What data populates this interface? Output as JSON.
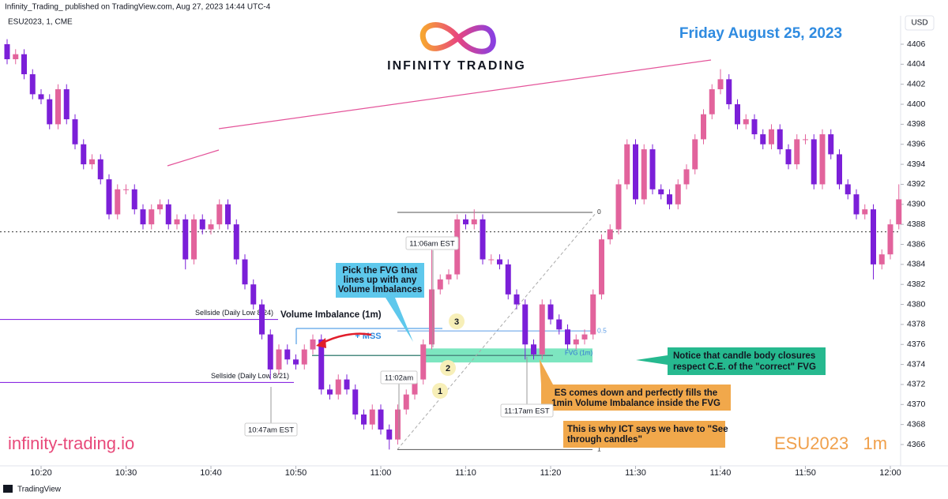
{
  "chart_data": {
    "type": "candlestick",
    "header": "Infinity_Trading_ published on TradingView.com, Aug 27, 2023 14:44 UTC-4",
    "symbol": "ESU2023, 1, CME",
    "logo": "INFINITY TRADING",
    "title": "Friday August 25, 2023",
    "currency": "USD",
    "footer": "TradingView",
    "watermark_left": "infinity-trading.io",
    "watermark_right": "ESU2023   1m",
    "up_color": "#e2639c",
    "down_color": "#7b1fd8",
    "categories": [
      null,
      null,
      null,
      null,
      "10:20",
      null,
      null,
      null,
      null,
      null,
      null,
      null,
      null,
      null,
      "10:30",
      null,
      null,
      null,
      null,
      null,
      null,
      null,
      null,
      null,
      "10:40",
      null,
      null,
      null,
      null,
      null,
      null,
      null,
      null,
      null,
      "10:50",
      null,
      null,
      null,
      null,
      null,
      null,
      null,
      null,
      null,
      "11:00",
      null,
      null,
      null,
      null,
      null,
      null,
      null,
      null,
      null,
      "11:10",
      null,
      null,
      null,
      null,
      null,
      null,
      null,
      null,
      null,
      "11:20",
      null,
      null,
      null,
      null,
      null,
      null,
      null,
      null,
      null,
      "11:30",
      null,
      null,
      null,
      null,
      null,
      null,
      null,
      null,
      null,
      "11:40",
      null,
      null,
      null,
      null,
      null,
      null,
      null,
      null,
      null,
      "11:50",
      null,
      null,
      null,
      null,
      null,
      null,
      null,
      null,
      null,
      "12:00",
      null
    ],
    "open": [
      4406,
      4404.5,
      4405,
      4403,
      4401,
      4400.5,
      4398,
      4401.5,
      4398.5,
      4396,
      4394,
      4394.5,
      4392.5,
      4389,
      4391.5,
      4391.5,
      4389.5,
      4388,
      4389.5,
      4390,
      4388,
      4388.5,
      4384.5,
      4388.5,
      4387.5,
      4388,
      4390,
      4388,
      4384.5,
      4382,
      4380,
      4377,
      4373.5,
      4375.5,
      4374.5,
      4374,
      4375.5,
      4376.5,
      4371.5,
      4371,
      4372.5,
      4371.5,
      4369,
      4368,
      4369.5,
      4367.5,
      4366.5,
      4369.5,
      4371,
      4372.5,
      4376,
      4381.5,
      4382.5,
      4383,
      4388.5,
      4388,
      4388.5,
      4384.5,
      4384.5,
      4384,
      4381,
      4380,
      4376,
      4375,
      4380,
      4378.5,
      4377.5,
      4376,
      4376.5,
      4377,
      4381,
      4386.5,
      4387.5,
      4392,
      4396,
      4390.5,
      4395.5,
      4391.5,
      4391,
      4390,
      4392,
      4393.5,
      4396.5,
      4399,
      4401.5,
      4402.5,
      4400,
      4398,
      4398.5,
      4397,
      4396,
      4397.5,
      4395.5,
      4394,
      4396.5,
      4396.5,
      4392,
      4397,
      4395,
      4392,
      4391,
      4389,
      4389.5,
      4384,
      4385,
      4388
    ],
    "high": [
      4406.5,
      4405.5,
      4405.5,
      4403.5,
      4401.5,
      4401,
      4402,
      4402,
      4399,
      4396.5,
      4395,
      4395,
      4393,
      4392,
      4392,
      4392,
      4390,
      4390,
      4390.5,
      4390.5,
      4389,
      4389,
      4389,
      4389,
      4388.5,
      4390.5,
      4390.5,
      4388.5,
      4385,
      4382.5,
      4380.5,
      4377.5,
      4376,
      4376,
      4375,
      4376,
      4377,
      4377,
      4372,
      4373,
      4373,
      4372,
      4369.5,
      4370,
      4370,
      4368,
      4370,
      4371.5,
      4373,
      4376.5,
      4385.5,
      4383,
      4383.5,
      4389,
      4389,
      4389.5,
      4389,
      4385,
      4385,
      4384.5,
      4381.5,
      4380.5,
      4376.5,
      4380.5,
      4380.5,
      4379,
      4378,
      4377,
      4377.5,
      4381.5,
      4387,
      4388,
      4392.5,
      4396.5,
      4396.5,
      4396,
      4396,
      4392,
      4391.5,
      4392.5,
      4394,
      4397,
      4399.5,
      4402,
      4403.5,
      4403,
      4400.5,
      4399,
      4399,
      4397.5,
      4398,
      4398,
      4396,
      4397,
      4397,
      4397,
      4397.5,
      4397.5,
      4395.5,
      4392.5,
      4391.5,
      4390,
      4390,
      4385.5,
      4388.5,
      4392
    ],
    "low": [
      4404,
      4404,
      4402.5,
      4400.5,
      4400,
      4397.5,
      4397.5,
      4398,
      4395.5,
      4393.5,
      4393.5,
      4392,
      4388.5,
      4388.5,
      4391,
      4389,
      4387.5,
      4387.5,
      4389,
      4387.5,
      4387.5,
      4383.5,
      4384,
      4387,
      4387,
      4387.5,
      4387.5,
      4384,
      4381.5,
      4379.5,
      4376.5,
      4372.5,
      4373,
      4374,
      4373.5,
      4373.5,
      4375,
      4371,
      4370.5,
      4370.5,
      4371,
      4368.5,
      4367.5,
      4367.5,
      4367,
      4365.5,
      4366,
      4369,
      4370.5,
      4372,
      4375.5,
      4381,
      4382,
      4382.5,
      4387.5,
      4387.5,
      4384,
      4384,
      4383.5,
      4380.5,
      4379.5,
      4374.5,
      4374.5,
      4374.5,
      4378,
      4377,
      4375.5,
      4375.5,
      4376,
      4376.5,
      4380.5,
      4386,
      4387,
      4391.5,
      4390,
      4390,
      4391,
      4390.5,
      4389.5,
      4389.5,
      4391.5,
      4393,
      4396,
      4398.5,
      4401,
      4399.5,
      4397.5,
      4397.5,
      4396.5,
      4395.5,
      4395.5,
      4395,
      4393.5,
      4393.5,
      4396,
      4391.5,
      4391.5,
      4394.5,
      4391.5,
      4390.5,
      4388.5,
      4388.5,
      4382.5,
      4383.5,
      4384.5,
      4387.5
    ],
    "close": [
      4404.5,
      4405,
      4403,
      4401,
      4400.5,
      4398,
      4401.5,
      4398.5,
      4396,
      4394,
      4394.5,
      4392.5,
      4389,
      4391.5,
      4391.5,
      4389.5,
      4388,
      4389.5,
      4390,
      4388,
      4388.5,
      4384.5,
      4388.5,
      4387.5,
      4388,
      4390,
      4388,
      4384.5,
      4382,
      4380,
      4377,
      4373.5,
      4375.5,
      4374.5,
      4374,
      4375.5,
      4376.5,
      4371.5,
      4371,
      4372.5,
      4371.5,
      4369,
      4368,
      4369.5,
      4367.5,
      4366.5,
      4369.5,
      4371,
      4372.5,
      4376,
      4381.5,
      4382.5,
      4383,
      4388.5,
      4388,
      4388.5,
      4384.5,
      4384.5,
      4384,
      4381,
      4380,
      4376,
      4375,
      4380,
      4378.5,
      4377.5,
      4376,
      4376.5,
      4377,
      4381,
      4386.5,
      4387.5,
      4392,
      4396,
      4390.5,
      4395.5,
      4391.5,
      4391,
      4390,
      4392,
      4393.5,
      4396.5,
      4399,
      4401.5,
      4402.5,
      4400,
      4398,
      4398.5,
      4397,
      4396,
      4397.5,
      4395.5,
      4394,
      4396.5,
      4396.5,
      4392,
      4397,
      4395,
      4392,
      4391,
      4389,
      4389.5,
      4384,
      4385,
      4388,
      4390.5
    ],
    "ylim": [
      4363.87,
      4408.84
    ],
    "yticks": [
      4366,
      4368,
      4370,
      4372,
      4374,
      4376,
      4378,
      4380,
      4382,
      4384,
      4386,
      4388,
      4390,
      4392,
      4394,
      4396,
      4398,
      4400,
      4402,
      4404,
      4406
    ],
    "price_line": 4387.25,
    "levels": [
      {
        "label": "Sellside (Daily Low 8/24)",
        "value": 4378.5
      },
      {
        "label": "Sellside (Daily Low 8/21)",
        "value": 4372.2
      }
    ],
    "mss": {
      "label": "+ MSS",
      "value": 4377.6
    },
    "volume_imbalance": {
      "label": "Volume Imbalance (1m)",
      "value": 4374.9
    },
    "fvg": {
      "label": "FVG (1m)",
      "top": 4375.6,
      "bottom": 4374.2
    },
    "fib": [
      {
        "value": 4389.2,
        "label": "0"
      },
      {
        "value": 4377.35,
        "label": "0.5"
      },
      {
        "value": 4365.5,
        "label": "1"
      }
    ],
    "time_labels": [
      "10:47am EST",
      "11:02am",
      "11:06am EST",
      "11:17am EST"
    ],
    "steps": [
      "1",
      "2",
      "3"
    ],
    "callouts": {
      "pick": [
        "Pick the FVG that",
        "lines up with any",
        "Volume Imbalances"
      ],
      "notice": [
        "Notice that candle body closures",
        "respect C.E. of the \"correct\" FVG"
      ],
      "fills": [
        "ES comes down and perfectly fills the",
        "1min Volume Imbalance inside the FVG"
      ],
      "see": [
        "This is why ICT says we have to \"See",
        "through candles\""
      ]
    }
  }
}
